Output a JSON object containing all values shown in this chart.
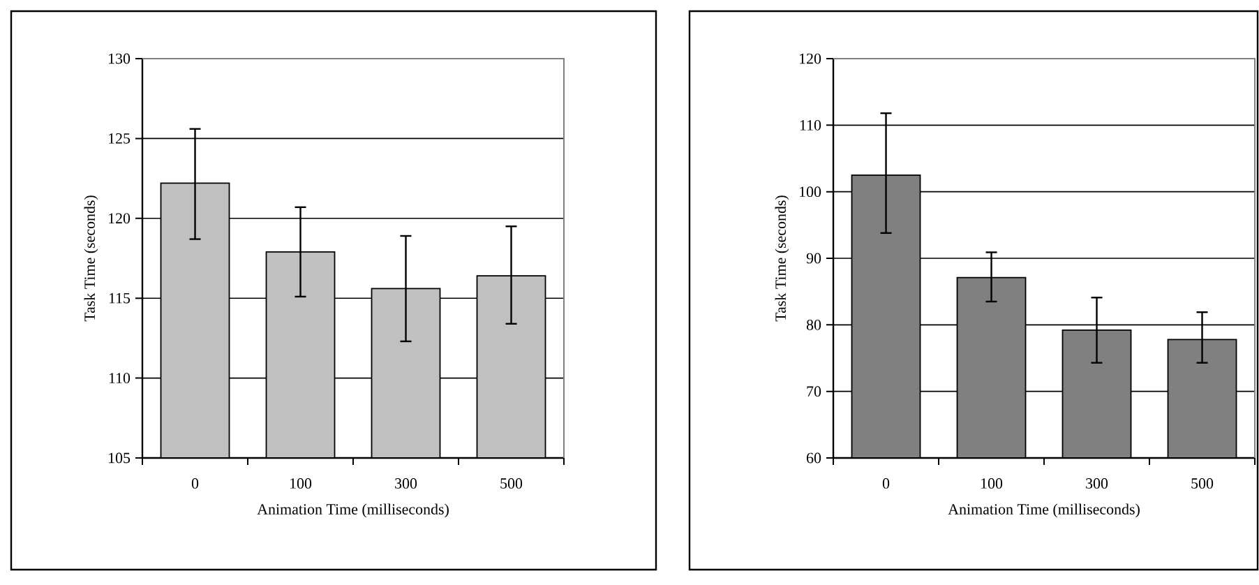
{
  "chart_data": [
    {
      "type": "bar",
      "categories": [
        "0",
        "100",
        "300",
        "500"
      ],
      "xlabel": "Animation Time (milliseconds)",
      "ylabel": "Task Time (seconds)",
      "color": "#c0c0c0",
      "values": [
        122.2,
        117.9,
        115.6,
        116.4
      ],
      "errors": [
        [
          118.7,
          125.6
        ],
        [
          115.1,
          120.7
        ],
        [
          112.3,
          118.9
        ],
        [
          113.4,
          119.5
        ]
      ],
      "ylim": [
        105,
        130
      ],
      "yticks": [
        105,
        110,
        115,
        120,
        125,
        130
      ],
      "grid": "y"
    },
    {
      "type": "bar",
      "categories": [
        "0",
        "100",
        "300",
        "500"
      ],
      "xlabel": "Animation Time (milliseconds)",
      "ylabel": "Task Time (seconds)",
      "color": "#808080",
      "values": [
        102.5,
        87.1,
        79.2,
        77.8
      ],
      "errors": [
        [
          93.8,
          111.8
        ],
        [
          83.5,
          90.9
        ],
        [
          74.3,
          84.1
        ],
        [
          74.3,
          81.9
        ]
      ],
      "ylim": [
        60,
        120
      ],
      "yticks": [
        60,
        70,
        80,
        90,
        100,
        110,
        120
      ],
      "grid": "y"
    }
  ]
}
